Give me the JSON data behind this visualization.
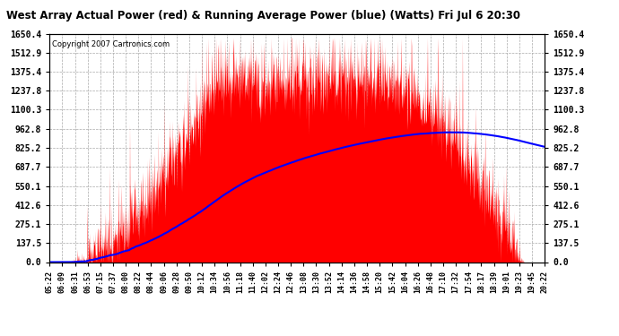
{
  "title": "West Array Actual Power (red) & Running Average Power (blue) (Watts) Fri Jul 6 20:30",
  "copyright": "Copyright 2007 Cartronics.com",
  "background_color": "#ffffff",
  "plot_bg_color": "#ffffff",
  "grid_color": "#aaaaaa",
  "actual_color": "#ff0000",
  "average_color": "#0000ff",
  "y_max": 1650.4,
  "y_min": 0.0,
  "yticks": [
    0.0,
    137.5,
    275.1,
    412.6,
    550.1,
    687.7,
    825.2,
    962.8,
    1100.3,
    1237.8,
    1375.4,
    1512.9,
    1650.4
  ],
  "ytick_labels": [
    "0.0",
    "137.5",
    "275.1",
    "412.6",
    "550.1",
    "687.7",
    "825.2",
    "962.8",
    "1100.3",
    "1237.8",
    "1375.4",
    "1512.9",
    "1650.4"
  ],
  "x_labels": [
    "05:22",
    "06:09",
    "06:31",
    "06:53",
    "07:15",
    "07:37",
    "08:00",
    "08:22",
    "08:44",
    "09:06",
    "09:28",
    "09:50",
    "10:12",
    "10:34",
    "10:56",
    "11:18",
    "11:40",
    "12:02",
    "12:24",
    "12:46",
    "13:08",
    "13:30",
    "13:52",
    "14:14",
    "14:36",
    "14:58",
    "15:20",
    "15:42",
    "16:04",
    "16:26",
    "16:48",
    "17:10",
    "17:32",
    "17:54",
    "18:17",
    "18:39",
    "19:01",
    "19:23",
    "19:45",
    "20:22"
  ],
  "figsize": [
    6.9,
    3.75
  ],
  "dpi": 100
}
